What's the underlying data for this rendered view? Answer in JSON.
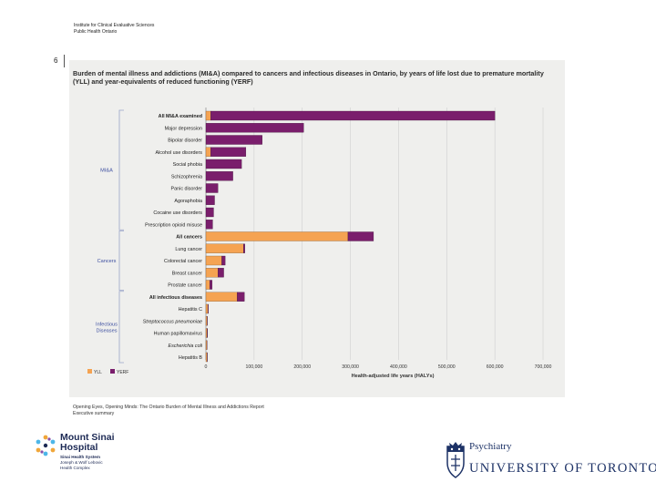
{
  "header": {
    "org_line_1": "Institute for Clinical Evaluative Sciences",
    "org_line_2": "Public Health Ontario"
  },
  "page_number": "6",
  "source": {
    "line_1": "Opening Eyes, Opening Minds: The Ontario Burden of Mental Illness and Addictions Report",
    "line_2": "Executive summary"
  },
  "logos": {
    "mount_sinai": {
      "name_1": "Mount Sinai",
      "name_2": "Hospital",
      "sub_1": "Sinai Health System",
      "sub_2": "Joseph & Wolf Lebovic",
      "sub_3": "Health Complex"
    },
    "uoft": {
      "dept": "Psychiatry",
      "name": "UNIVERSITY OF TORONTO"
    }
  },
  "colors": {
    "yll": "#f5a352",
    "yerf": "#7a1e6c",
    "bracket": "#9aa5c9",
    "group_label": "#3c4ea0",
    "panel": "#efefed"
  },
  "chart_data": {
    "type": "bar",
    "orientation": "horizontal",
    "stacked": true,
    "title": "Burden of mental illness and addictions (MI&A) compared to cancers and infectious diseases in Ontario, by years of life lost due to premature mortality (YLL) and year-equivalents of reduced functioning (YERF)",
    "xlabel": "Health-adjusted life years (HALYs)",
    "xlim": [
      0,
      700000
    ],
    "xticks": [
      0,
      100000,
      200000,
      300000,
      400000,
      500000,
      600000,
      700000
    ],
    "xtick_labels": [
      "0",
      "100,000",
      "200,000",
      "300,000",
      "400,000",
      "500,000",
      "600,000",
      "700,000"
    ],
    "grid": true,
    "legend": {
      "position": "bottom-left",
      "entries": [
        "YLL",
        "YERF"
      ]
    },
    "groups": [
      {
        "name": "MI&A",
        "start": 0,
        "end": 9
      },
      {
        "name": "Cancers",
        "start": 10,
        "end": 14
      },
      {
        "name": "Infectious Diseases",
        "start": 15,
        "end": 20
      }
    ],
    "categories": [
      "All MI&A examined",
      "Major depression",
      "Bipolar disorder",
      "Alcohol use disorders",
      "Social phobia",
      "Schizophrenia",
      "Panic disorder",
      "Agoraphobia",
      "Cocaine use disorders",
      "Prescription opioid misuse",
      "All cancers",
      "Lung cancer",
      "Colorectal cancer",
      "Breast cancer",
      "Prostate cancer",
      "All infectious diseases",
      "Hepatitis C",
      "Streptococcus pneumoniae",
      "Human papillomavirus",
      "Escherichia coli",
      "Hepatitis B"
    ],
    "bold_categories": [
      "All MI&A examined",
      "All cancers",
      "All infectious diseases"
    ],
    "italic_categories": [
      "Streptococcus pneumoniae",
      "Escherichia coli"
    ],
    "series": [
      {
        "name": "YLL",
        "values": [
          10000,
          0,
          0,
          10000,
          0,
          0,
          0,
          0,
          0,
          0,
          295000,
          78000,
          33000,
          25000,
          8000,
          65000,
          4000,
          2500,
          2500,
          2000,
          2500
        ]
      },
      {
        "name": "YERF",
        "values": [
          590000,
          203000,
          117000,
          73000,
          74000,
          56000,
          25000,
          18000,
          16000,
          14000,
          53000,
          3000,
          7000,
          12000,
          5000,
          15000,
          1000,
          500,
          1000,
          500,
          500
        ]
      }
    ]
  }
}
